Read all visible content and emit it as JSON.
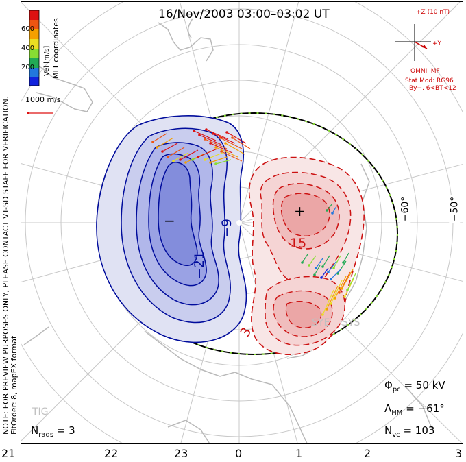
{
  "title": "16/Nov/2003 03:00–03:02 UT",
  "colorbar": {
    "coords_label": "MLT coordinates",
    "unit_label": "Vel [m/s]",
    "ticks": [
      "600",
      "400",
      "200"
    ],
    "colors": [
      "#dd1111",
      "#ee5511",
      "#f5a000",
      "#eadd22",
      "#88dd33",
      "#22aa55",
      "#2277dd",
      "#1122dd"
    ]
  },
  "velocity_scale": "1000 m/s",
  "side_notes": {
    "line1": "NOTE: FOR PREVIEW PURPOSES ONLY, PLEASE CONTACT VT-SD STAFF FOR VERIFICATION.",
    "line2": "FitOrder: 8, mapEX format"
  },
  "imf": {
    "bz_label": "+Z (10 nT)",
    "by_label": "+Y",
    "source": "OMNI IMF",
    "model_line1": "Stat Mod: RG96",
    "model_line2": "By−, 6<BT<12"
  },
  "contours": {
    "neg_label_a": "−9",
    "neg_label_b": "−21",
    "pos_label_a": "15",
    "pos_label_b": "3",
    "min_marker": "−",
    "max_marker": "+"
  },
  "stats": {
    "phi_pc": {
      "symbol": "Φ",
      "sub": "pc",
      "value": "= 50 kV"
    },
    "lambda_hm": {
      "symbol": "Λ",
      "sub": "HM",
      "value": "= −61°"
    },
    "n_vc": {
      "symbol": "N",
      "sub": "vc",
      "value": "= 103"
    },
    "n_rads": {
      "symbol": "N",
      "sub": "rads",
      "value": "= 3"
    }
  },
  "station_labels": {
    "tig": "TIG",
    "sye": "SYE",
    "sys": "SYS"
  },
  "lat_labels": [
    "−60°",
    "−50°"
  ],
  "mlt_labels": [
    "21",
    "22",
    "23",
    "0",
    "1",
    "2",
    "3"
  ]
}
